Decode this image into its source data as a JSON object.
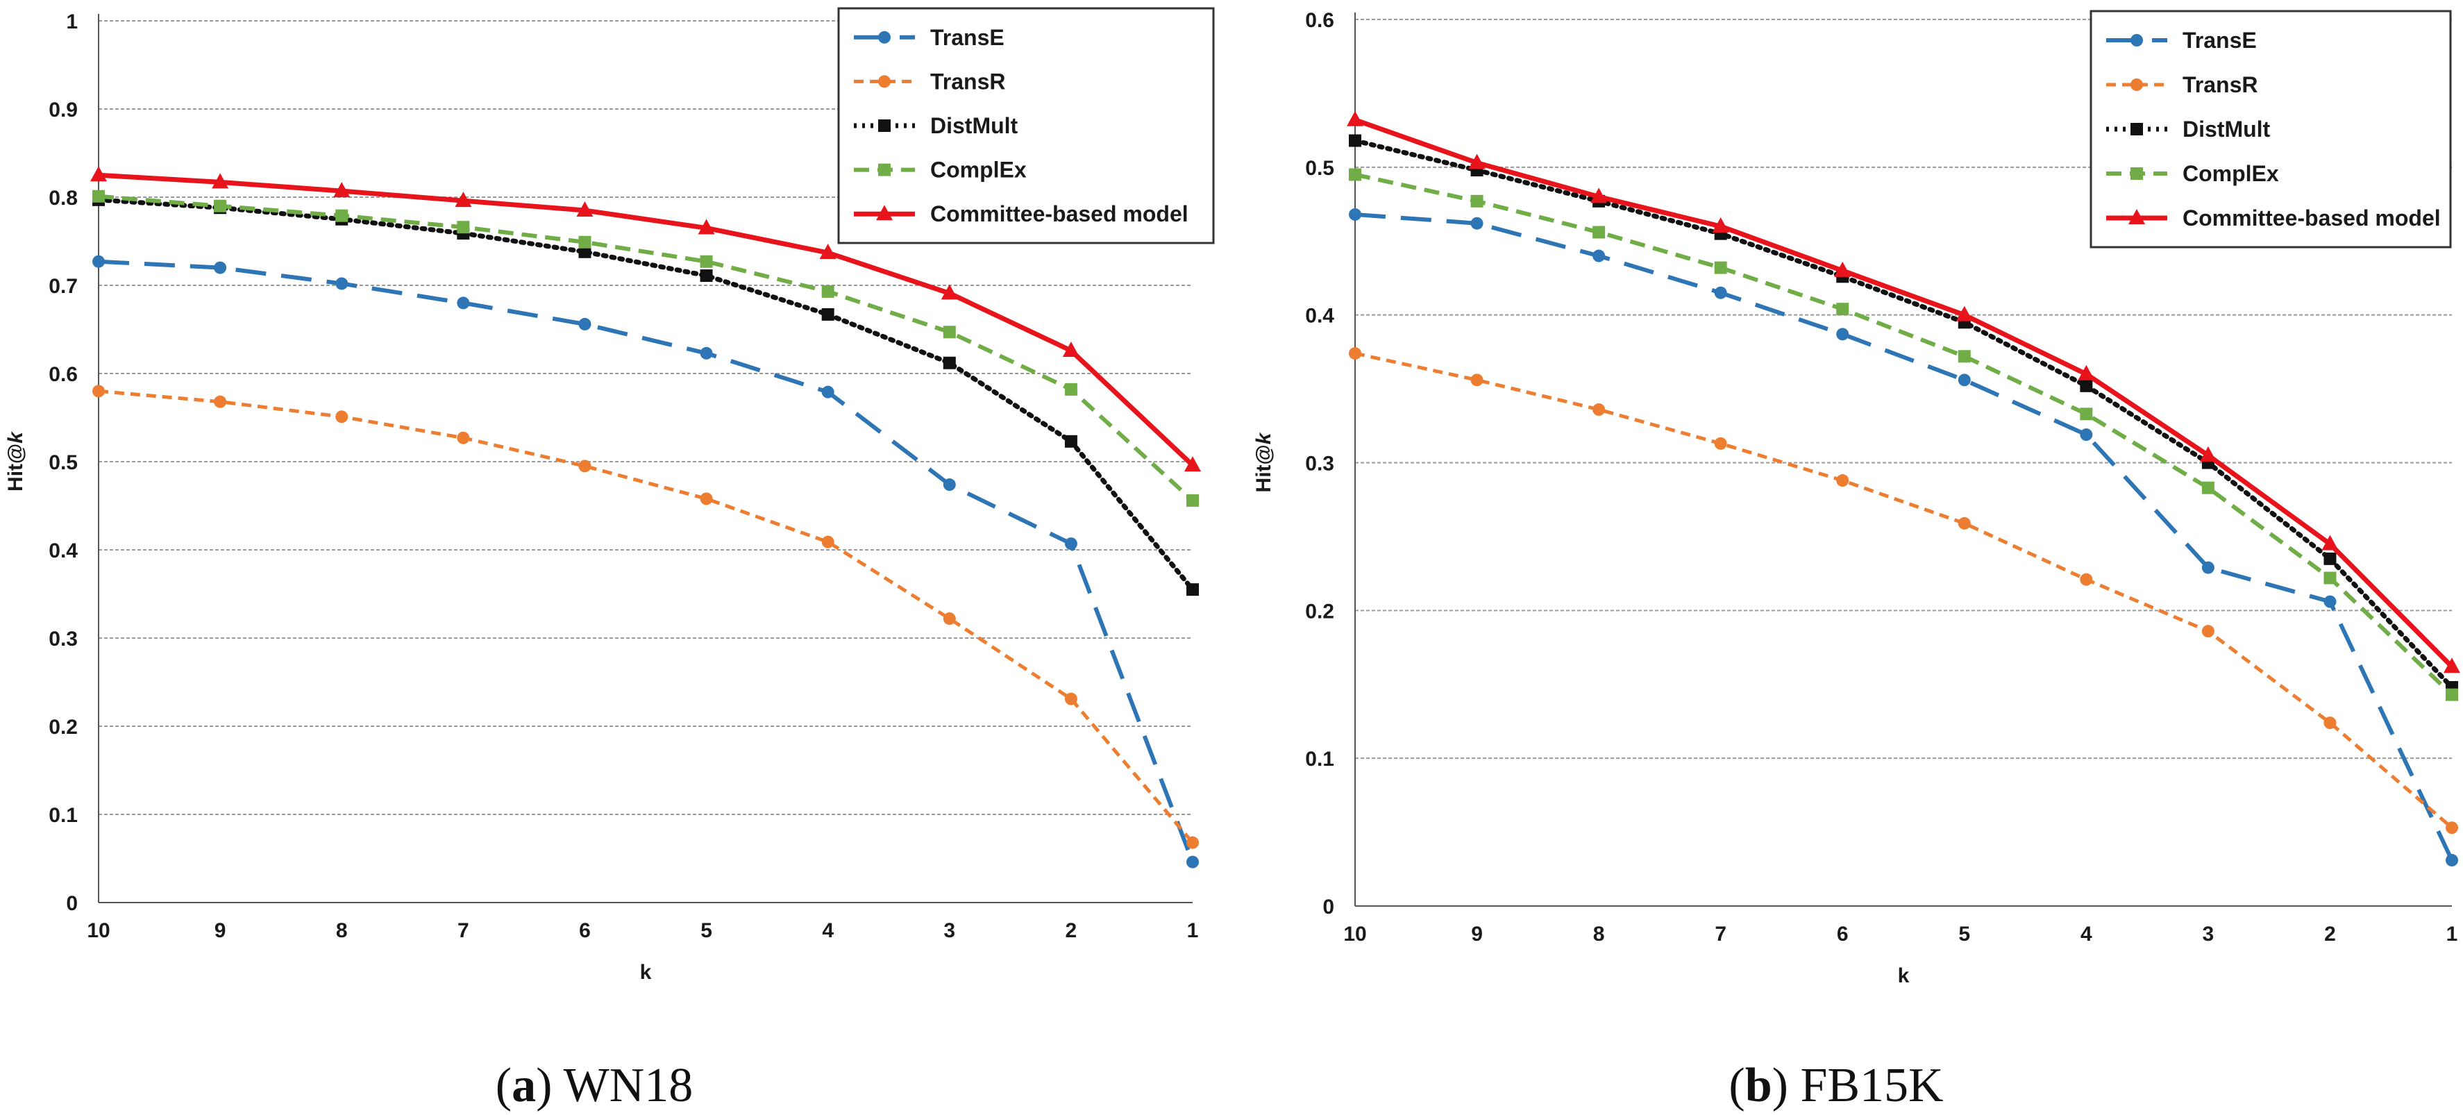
{
  "series_styles": [
    {
      "name": "TransE",
      "color": "#2e75b6",
      "dash": "44 22",
      "width": 6,
      "marker": "circle"
    },
    {
      "name": "TransR",
      "color": "#ed7d31",
      "dash": "14 9",
      "width": 5,
      "marker": "circle"
    },
    {
      "name": "DistMult",
      "color": "#111111",
      "dash": "4 8",
      "width": 7,
      "marker": "square"
    },
    {
      "name": "ComplEx",
      "color": "#70ad47",
      "dash": "22 12",
      "width": 6,
      "marker": "square"
    },
    {
      "name": "Committee-based model",
      "color": "#e8141c",
      "dash": "none",
      "width": 7,
      "marker": "triangle"
    }
  ],
  "captions": [
    {
      "letter": "a",
      "text": "WN18"
    },
    {
      "letter": "b",
      "text": "FB15K"
    }
  ],
  "chart_data": [
    {
      "type": "line",
      "title": "",
      "xlabel": "k",
      "ylabel": "Hit@k",
      "ylabel_prefix": "Hit@",
      "ylabel_var": "k",
      "categories": [
        "10",
        "9",
        "8",
        "7",
        "6",
        "5",
        "4",
        "3",
        "2",
        "1"
      ],
      "ylim": [
        0,
        1
      ],
      "yticks": [
        0,
        0.1,
        0.2,
        0.3,
        0.4,
        0.5,
        0.6,
        0.7,
        0.8,
        0.9,
        1
      ],
      "ytick_labels": [
        "0",
        "0.1",
        "0.2",
        "0.3",
        "0.4",
        "0.5",
        "0.6",
        "0.7",
        "0.8",
        "0.9",
        "1"
      ],
      "grid": true,
      "legend_position": "top-right",
      "series": [
        {
          "name": "TransE",
          "values": [
            0.727,
            0.72,
            0.702,
            0.68,
            0.656,
            0.623,
            0.579,
            0.474,
            0.407,
            0.046
          ]
        },
        {
          "name": "TransR",
          "values": [
            0.58,
            0.568,
            0.551,
            0.527,
            0.495,
            0.458,
            0.409,
            0.322,
            0.231,
            0.068
          ]
        },
        {
          "name": "DistMult",
          "values": [
            0.797,
            0.788,
            0.775,
            0.759,
            0.738,
            0.711,
            0.667,
            0.612,
            0.523,
            0.355
          ]
        },
        {
          "name": "ComplEx",
          "values": [
            0.801,
            0.79,
            0.779,
            0.766,
            0.749,
            0.727,
            0.693,
            0.647,
            0.582,
            0.456
          ]
        },
        {
          "name": "Committee-based model",
          "values": [
            0.825,
            0.817,
            0.807,
            0.796,
            0.785,
            0.765,
            0.737,
            0.691,
            0.626,
            0.496
          ]
        }
      ]
    },
    {
      "type": "line",
      "title": "",
      "xlabel": "k",
      "ylabel": "Hit@k",
      "ylabel_prefix": "Hit@",
      "ylabel_var": "k",
      "categories": [
        "10",
        "9",
        "8",
        "7",
        "6",
        "5",
        "4",
        "3",
        "2",
        "1"
      ],
      "ylim": [
        0,
        0.6
      ],
      "yticks": [
        0,
        0.1,
        0.2,
        0.3,
        0.4,
        0.5,
        0.6
      ],
      "ytick_labels": [
        "0",
        "0.1",
        "0.2",
        "0.3",
        "0.4",
        "0.5",
        "0.6"
      ],
      "grid": true,
      "legend_position": "top-right",
      "series": [
        {
          "name": "TransE",
          "values": [
            0.468,
            0.462,
            0.44,
            0.415,
            0.387,
            0.356,
            0.319,
            0.229,
            0.206,
            0.031
          ]
        },
        {
          "name": "TransR",
          "values": [
            0.374,
            0.356,
            0.336,
            0.313,
            0.288,
            0.259,
            0.221,
            0.186,
            0.124,
            0.053
          ]
        },
        {
          "name": "DistMult",
          "values": [
            0.518,
            0.498,
            0.477,
            0.455,
            0.426,
            0.395,
            0.352,
            0.3,
            0.235,
            0.148
          ]
        },
        {
          "name": "ComplEx",
          "values": [
            0.495,
            0.477,
            0.456,
            0.432,
            0.404,
            0.372,
            0.333,
            0.283,
            0.222,
            0.143
          ]
        },
        {
          "name": "Committee-based model",
          "values": [
            0.532,
            0.503,
            0.48,
            0.46,
            0.43,
            0.4,
            0.36,
            0.305,
            0.245,
            0.162
          ]
        }
      ]
    }
  ]
}
